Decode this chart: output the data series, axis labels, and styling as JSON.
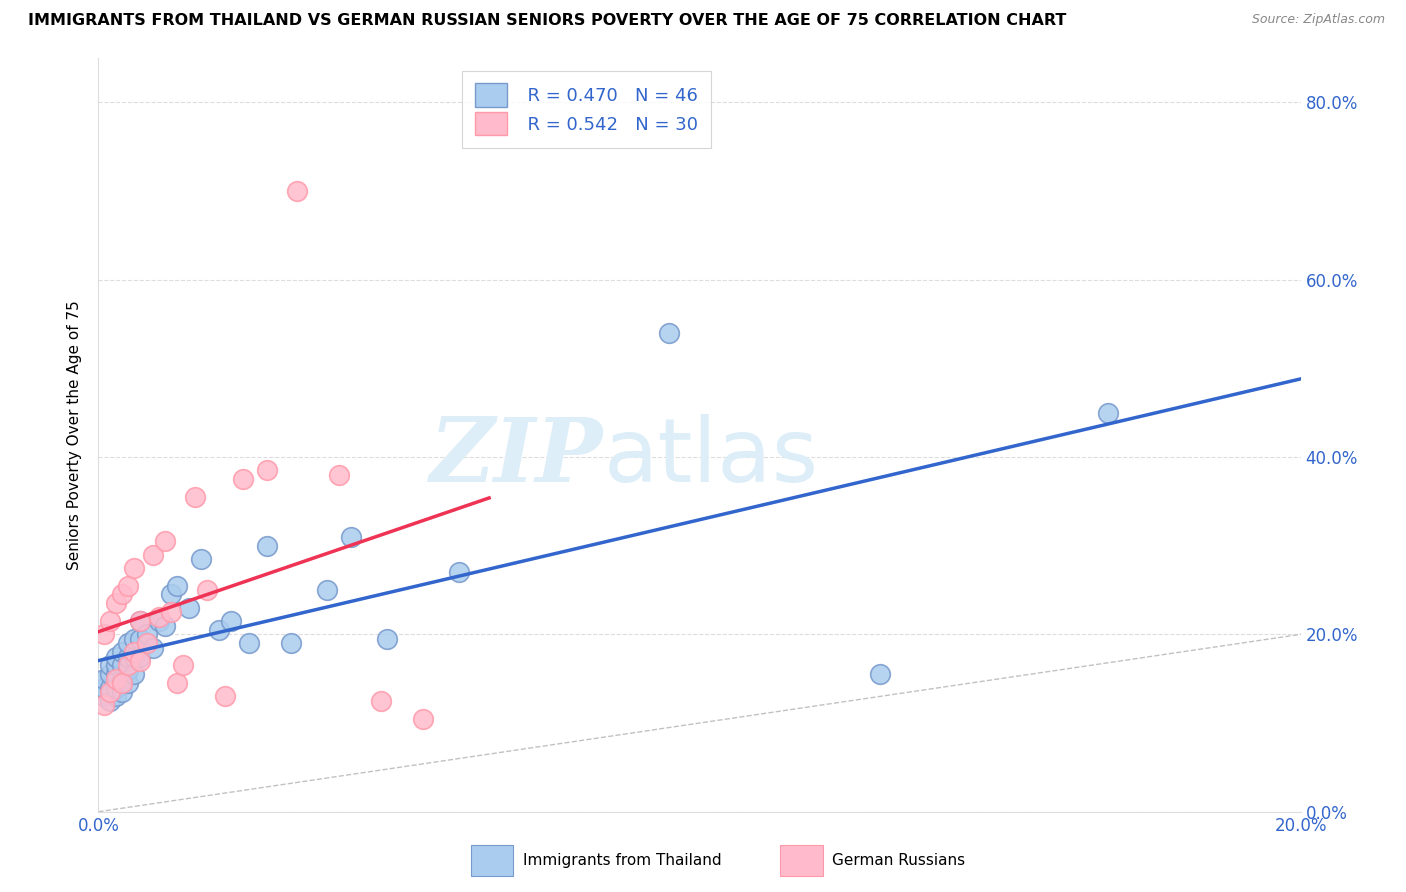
{
  "title": "IMMIGRANTS FROM THAILAND VS GERMAN RUSSIAN SENIORS POVERTY OVER THE AGE OF 75 CORRELATION CHART",
  "source": "Source: ZipAtlas.com",
  "ylabel": "Seniors Poverty Over the Age of 75",
  "xlim": [
    0.0,
    0.2
  ],
  "ylim": [
    0.0,
    0.85
  ],
  "xtick_vals": [
    0.0,
    0.2
  ],
  "xtick_labels": [
    "0.0%",
    "20.0%"
  ],
  "ytick_vals": [
    0.0,
    0.2,
    0.4,
    0.6,
    0.8
  ],
  "ytick_labels": [
    "0.0%",
    "20.0%",
    "40.0%",
    "60.0%",
    "80.0%"
  ],
  "blue_fill": "#AACCEE",
  "blue_edge": "#7799CC",
  "pink_fill": "#FFBBCC",
  "pink_edge": "#FF99AA",
  "blue_line": "#3366CC",
  "pink_line": "#EE3355",
  "diagonal_color": "#BBBBBB",
  "axis_tick_color": "#3366CC",
  "grid_color": "#DDDDDD",
  "watermark_color": "#DDEEF8",
  "legend_text_color": "#3366CC",
  "legend_r1": "R = 0.470",
  "legend_n1": "N = 46",
  "legend_r2": "R = 0.542",
  "legend_n2": "N = 30",
  "bottom_label1": "Immigrants from Thailand",
  "bottom_label2": "German Russians",
  "thailand_x": [
    0.001,
    0.001,
    0.001,
    0.002,
    0.002,
    0.002,
    0.002,
    0.003,
    0.003,
    0.003,
    0.003,
    0.003,
    0.004,
    0.004,
    0.004,
    0.004,
    0.005,
    0.005,
    0.005,
    0.005,
    0.006,
    0.006,
    0.006,
    0.007,
    0.007,
    0.007,
    0.008,
    0.009,
    0.01,
    0.011,
    0.012,
    0.013,
    0.015,
    0.017,
    0.02,
    0.022,
    0.025,
    0.028,
    0.032,
    0.038,
    0.042,
    0.048,
    0.06,
    0.095,
    0.13,
    0.168
  ],
  "thailand_y": [
    0.13,
    0.14,
    0.15,
    0.125,
    0.14,
    0.155,
    0.165,
    0.13,
    0.14,
    0.155,
    0.165,
    0.175,
    0.135,
    0.15,
    0.165,
    0.18,
    0.145,
    0.16,
    0.175,
    0.19,
    0.155,
    0.175,
    0.195,
    0.175,
    0.195,
    0.215,
    0.2,
    0.185,
    0.215,
    0.21,
    0.245,
    0.255,
    0.23,
    0.285,
    0.205,
    0.215,
    0.19,
    0.3,
    0.19,
    0.25,
    0.31,
    0.195,
    0.27,
    0.54,
    0.155,
    0.45
  ],
  "german_x": [
    0.001,
    0.001,
    0.002,
    0.002,
    0.003,
    0.003,
    0.004,
    0.004,
    0.005,
    0.005,
    0.006,
    0.006,
    0.007,
    0.007,
    0.008,
    0.009,
    0.01,
    0.011,
    0.012,
    0.013,
    0.014,
    0.016,
    0.018,
    0.021,
    0.024,
    0.028,
    0.033,
    0.04,
    0.047,
    0.054
  ],
  "german_y": [
    0.12,
    0.2,
    0.135,
    0.215,
    0.15,
    0.235,
    0.145,
    0.245,
    0.165,
    0.255,
    0.18,
    0.275,
    0.17,
    0.215,
    0.19,
    0.29,
    0.22,
    0.305,
    0.225,
    0.145,
    0.165,
    0.355,
    0.25,
    0.13,
    0.375,
    0.385,
    0.7,
    0.38,
    0.125,
    0.105
  ]
}
